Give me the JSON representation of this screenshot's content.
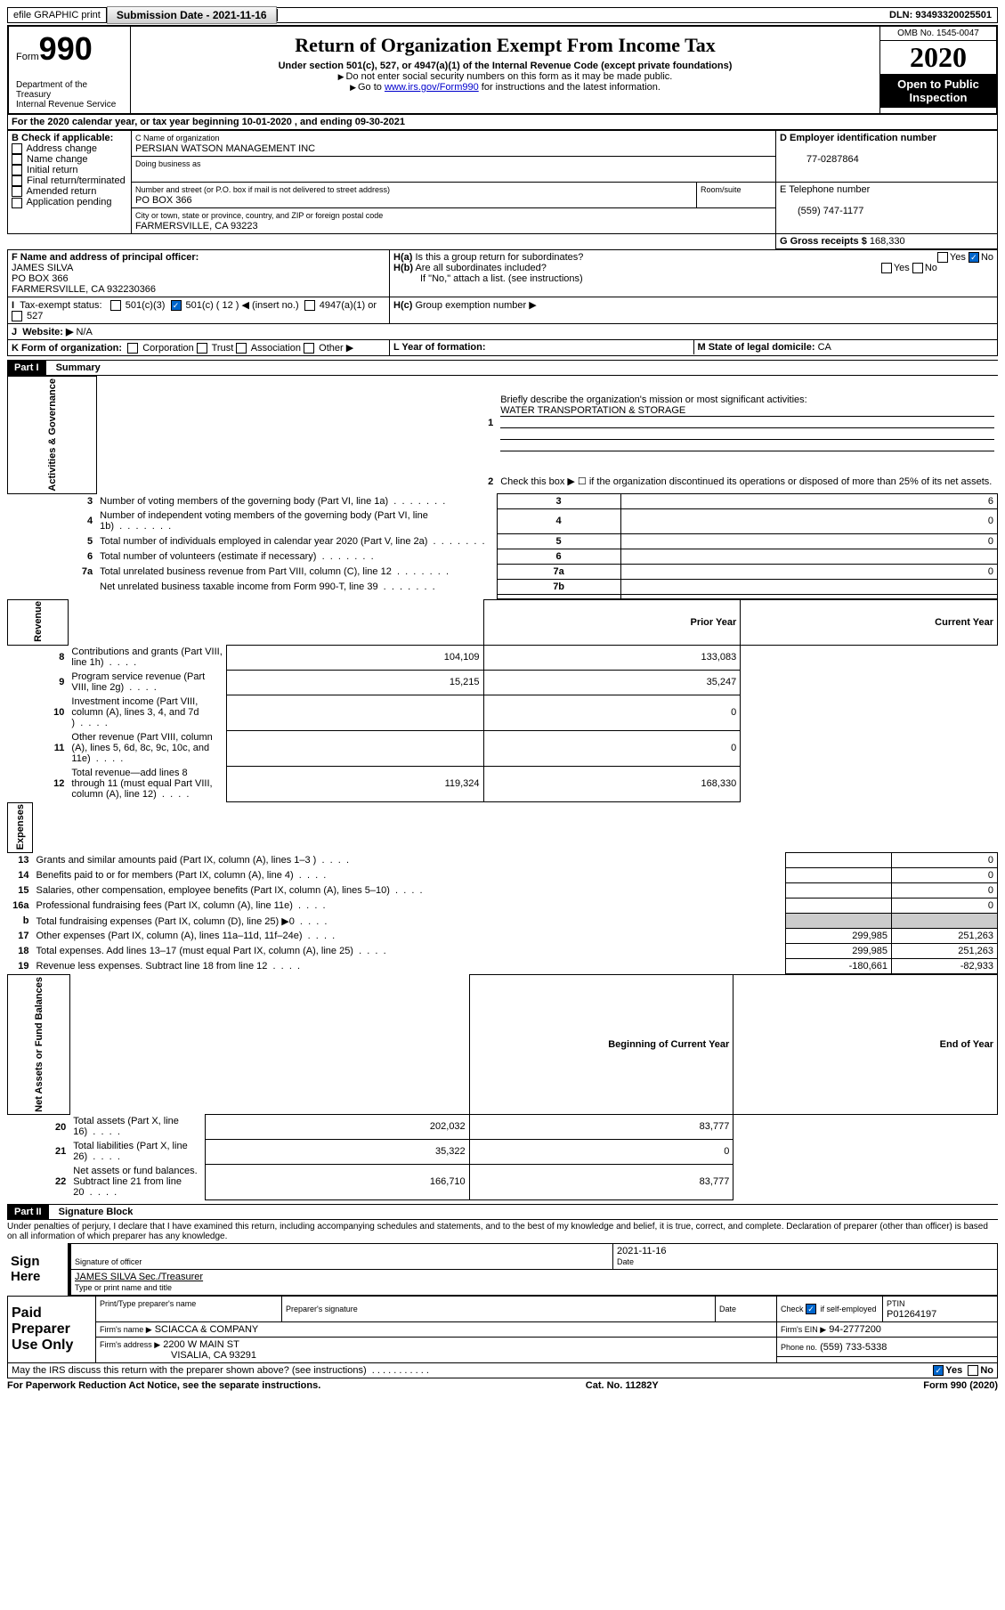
{
  "header": {
    "efile_label": "efile GRAPHIC print",
    "submission_label": "Submission Date - 2021-11-16",
    "dln_label": "DLN: 93493320025501"
  },
  "title_block": {
    "form_label": "Form",
    "form_number": "990",
    "dept": "Department of the Treasury",
    "irs": "Internal Revenue Service",
    "title": "Return of Organization Exempt From Income Tax",
    "subtitle": "Under section 501(c), 527, or 4947(a)(1) of the Internal Revenue Code (except private foundations)",
    "note1": "Do not enter social security numbers on this form as it may be made public.",
    "note2_pre": "Go to ",
    "note2_link": "www.irs.gov/Form990",
    "note2_post": " for instructions and the latest information.",
    "omb": "OMB No. 1545-0047",
    "year": "2020",
    "inspection": "Open to Public Inspection"
  },
  "period": "For the 2020 calendar year, or tax year beginning 10-01-2020   , and ending 09-30-2021",
  "section_b": {
    "label": "B Check if applicable:",
    "items": [
      "Address change",
      "Name change",
      "Initial return",
      "Final return/terminated",
      "Amended return",
      "Application pending"
    ]
  },
  "section_c": {
    "name_label": "C Name of organization",
    "name": "PERSIAN WATSON MANAGEMENT INC",
    "dba_label": "Doing business as",
    "addr_label": "Number and street (or P.O. box if mail is not delivered to street address)",
    "room_label": "Room/suite",
    "addr": "PO BOX 366",
    "city_label": "City or town, state or province, country, and ZIP or foreign postal code",
    "city": "FARMERSVILLE, CA  93223"
  },
  "section_d": {
    "label": "D Employer identification number",
    "value": "77-0287864"
  },
  "section_e": {
    "label": "E Telephone number",
    "value": "(559) 747-1177"
  },
  "section_g": {
    "label": "G Gross receipts $",
    "value": "168,330"
  },
  "section_f": {
    "label": "F Name and address of principal officer:",
    "name": "JAMES SILVA",
    "addr1": "PO BOX 366",
    "addr2": "FARMERSVILLE, CA  932230366"
  },
  "section_h": {
    "ha": "Is this a group return for subordinates?",
    "hb": "Are all subordinates included?",
    "hc": "Group exemption number ▶",
    "note": "If \"No,\" attach a list. (see instructions)",
    "yes": "Yes",
    "no": "No"
  },
  "section_i": {
    "label": "Tax-exempt status:",
    "opts": [
      "501(c)(3)",
      "501(c) ( 12 ) ◀ (insert no.)",
      "4947(a)(1) or",
      "527"
    ]
  },
  "section_j": {
    "label": "Website: ▶",
    "value": "N/A"
  },
  "section_k": {
    "label": "K Form of organization:",
    "opts": [
      "Corporation",
      "Trust",
      "Association",
      "Other ▶"
    ]
  },
  "section_l": {
    "label": "L Year of formation:"
  },
  "section_m": {
    "label": "M State of legal domicile:",
    "value": "CA"
  },
  "part1": {
    "header": "Part I",
    "title": "Summary",
    "q1": "Briefly describe the organization's mission or most significant activities:",
    "q1_answer": "WATER TRANSPORTATION & STORAGE",
    "q2": "Check this box ▶ ☐ if the organization discontinued its operations or disposed of more than 25% of its net assets.",
    "rows_gov": [
      {
        "n": "3",
        "label": "Number of voting members of the governing body (Part VI, line 1a)",
        "box": "3",
        "val": "6"
      },
      {
        "n": "4",
        "label": "Number of independent voting members of the governing body (Part VI, line 1b)",
        "box": "4",
        "val": "0"
      },
      {
        "n": "5",
        "label": "Total number of individuals employed in calendar year 2020 (Part V, line 2a)",
        "box": "5",
        "val": "0"
      },
      {
        "n": "6",
        "label": "Total number of volunteers (estimate if necessary)",
        "box": "6",
        "val": ""
      },
      {
        "n": "7a",
        "label": "Total unrelated business revenue from Part VIII, column (C), line 12",
        "box": "7a",
        "val": "0"
      },
      {
        "n": "",
        "label": "Net unrelated business taxable income from Form 990-T, line 39",
        "box": "7b",
        "val": ""
      }
    ],
    "col_prior": "Prior Year",
    "col_current": "Current Year",
    "col_begin": "Beginning of Current Year",
    "col_end": "End of Year",
    "revenue": [
      {
        "n": "8",
        "label": "Contributions and grants (Part VIII, line 1h)",
        "prior": "104,109",
        "curr": "133,083"
      },
      {
        "n": "9",
        "label": "Program service revenue (Part VIII, line 2g)",
        "prior": "15,215",
        "curr": "35,247"
      },
      {
        "n": "10",
        "label": "Investment income (Part VIII, column (A), lines 3, 4, and 7d )",
        "prior": "",
        "curr": "0"
      },
      {
        "n": "11",
        "label": "Other revenue (Part VIII, column (A), lines 5, 6d, 8c, 9c, 10c, and 11e)",
        "prior": "",
        "curr": "0"
      },
      {
        "n": "12",
        "label": "Total revenue—add lines 8 through 11 (must equal Part VIII, column (A), line 12)",
        "prior": "119,324",
        "curr": "168,330"
      }
    ],
    "expenses": [
      {
        "n": "13",
        "label": "Grants and similar amounts paid (Part IX, column (A), lines 1–3 )",
        "prior": "",
        "curr": "0"
      },
      {
        "n": "14",
        "label": "Benefits paid to or for members (Part IX, column (A), line 4)",
        "prior": "",
        "curr": "0"
      },
      {
        "n": "15",
        "label": "Salaries, other compensation, employee benefits (Part IX, column (A), lines 5–10)",
        "prior": "",
        "curr": "0"
      },
      {
        "n": "16a",
        "label": "Professional fundraising fees (Part IX, column (A), line 11e)",
        "prior": "",
        "curr": "0"
      },
      {
        "n": "b",
        "label": "Total fundraising expenses (Part IX, column (D), line 25) ▶0",
        "prior": "GRAY",
        "curr": "GRAY"
      },
      {
        "n": "17",
        "label": "Other expenses (Part IX, column (A), lines 11a–11d, 11f–24e)",
        "prior": "299,985",
        "curr": "251,263"
      },
      {
        "n": "18",
        "label": "Total expenses. Add lines 13–17 (must equal Part IX, column (A), line 25)",
        "prior": "299,985",
        "curr": "251,263"
      },
      {
        "n": "19",
        "label": "Revenue less expenses. Subtract line 18 from line 12",
        "prior": "-180,661",
        "curr": "-82,933"
      }
    ],
    "net": [
      {
        "n": "20",
        "label": "Total assets (Part X, line 16)",
        "prior": "202,032",
        "curr": "83,777"
      },
      {
        "n": "21",
        "label": "Total liabilities (Part X, line 26)",
        "prior": "35,322",
        "curr": "0"
      },
      {
        "n": "22",
        "label": "Net assets or fund balances. Subtract line 21 from line 20",
        "prior": "166,710",
        "curr": "83,777"
      }
    ],
    "side_labels": {
      "gov": "Activities & Governance",
      "rev": "Revenue",
      "exp": "Expenses",
      "net": "Net Assets or Fund Balances"
    }
  },
  "part2": {
    "header": "Part II",
    "title": "Signature Block",
    "decl": "Under penalties of perjury, I declare that I have examined this return, including accompanying schedules and statements, and to the best of my knowledge and belief, it is true, correct, and complete. Declaration of preparer (other than officer) is based on all information of which preparer has any knowledge.",
    "sign_here": "Sign Here",
    "sig_officer": "Signature of officer",
    "date": "Date",
    "date_val": "2021-11-16",
    "name_title": "JAMES SILVA  Sec./Treasurer",
    "name_title_label": "Type or print name and title",
    "paid": "Paid Preparer Use Only",
    "prep_name_label": "Print/Type preparer's name",
    "prep_sig_label": "Preparer's signature",
    "check_self": "Check ☑ if self-employed",
    "ptin_label": "PTIN",
    "ptin": "P01264197",
    "firm_name_label": "Firm's name   ▶",
    "firm_name": "SCIACCA & COMPANY",
    "firm_ein_label": "Firm's EIN ▶",
    "firm_ein": "94-2777200",
    "firm_addr_label": "Firm's address ▶",
    "firm_addr1": "2200 W MAIN ST",
    "firm_addr2": "VISALIA, CA  93291",
    "phone_label": "Phone no.",
    "phone": "(559) 733-5338",
    "discuss": "May the IRS discuss this return with the preparer shown above? (see instructions)",
    "paperwork": "For Paperwork Reduction Act Notice, see the separate instructions.",
    "cat": "Cat. No. 11282Y",
    "form_footer": "Form 990 (2020)"
  }
}
